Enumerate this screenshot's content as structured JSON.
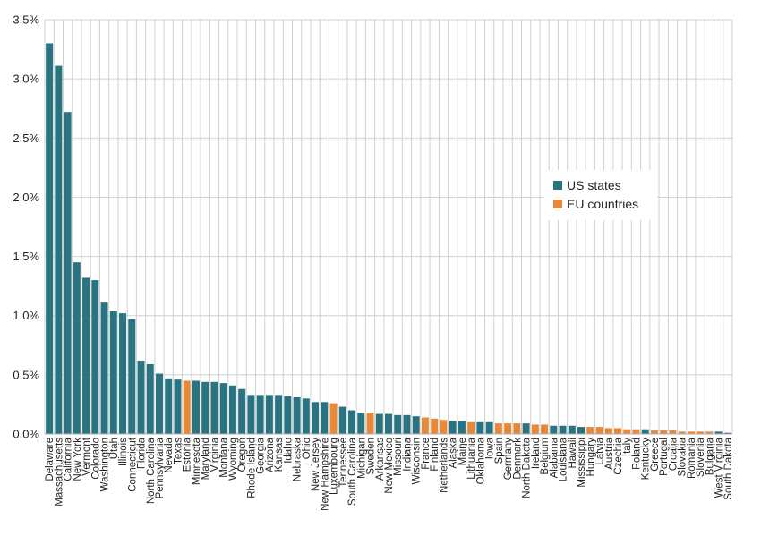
{
  "chart_data": {
    "type": "bar",
    "title": "",
    "xlabel": "",
    "ylabel": "",
    "ylim": [
      0,
      3.5
    ],
    "y_ticks": [
      "0.0%",
      "0.5%",
      "1.0%",
      "1.5%",
      "2.0%",
      "2.5%",
      "3.0%",
      "3.5%"
    ],
    "y_tick_values": [
      0,
      0.5,
      1.0,
      1.5,
      2.0,
      2.5,
      3.0,
      3.5
    ],
    "y_unit": "%",
    "grid": true,
    "legend_position": "right",
    "colors": {
      "US states": "#2a7380",
      "EU countries": "#e8893a"
    },
    "legend": [
      {
        "name": "US states",
        "color": "#2a7380"
      },
      {
        "name": "EU countries",
        "color": "#e8893a"
      }
    ],
    "categories": [
      "Delaware",
      "Massachusetts",
      "California",
      "New York",
      "Vermont",
      "Colorado",
      "Washington",
      "Utah",
      "Illinois",
      "Connecticut",
      "Florida",
      "North Carolina",
      "Pennsylvania",
      "Nevada",
      "Texas",
      "Estonia",
      "Minnesota",
      "Maryland",
      "Virginia",
      "Montana",
      "Wyoming",
      "Oregon",
      "Rhode Island",
      "Georgia",
      "Arizona",
      "Kansas",
      "Idaho",
      "Nebraska",
      "Ohio",
      "New Jersey",
      "New Hampshire",
      "Luxembourg",
      "Tennessee",
      "South Carolina",
      "Michigan",
      "Sweden",
      "Arkansas",
      "New Mexico",
      "Missouri",
      "Indiana",
      "Wisconsin",
      "France",
      "Finland",
      "Netherlands",
      "Alaska",
      "Maine",
      "Lithuania",
      "Oklahoma",
      "Iowa",
      "Spain",
      "Germany",
      "Denmark",
      "North Dakota",
      "Ireland",
      "Belgium",
      "Alabama",
      "Louisiana",
      "Hawaii",
      "Mississippi",
      "Hungary",
      "Latvia",
      "Austria",
      "Czechia",
      "Italy",
      "Poland",
      "Kentucky",
      "Greece",
      "Portugal",
      "Croatia",
      "Slovakia",
      "Romania",
      "Slovenia",
      "Bulgaria",
      "West Virginia",
      "South Dakota"
    ],
    "groups": [
      "US states",
      "US states",
      "US states",
      "US states",
      "US states",
      "US states",
      "US states",
      "US states",
      "US states",
      "US states",
      "US states",
      "US states",
      "US states",
      "US states",
      "US states",
      "EU countries",
      "US states",
      "US states",
      "US states",
      "US states",
      "US states",
      "US states",
      "US states",
      "US states",
      "US states",
      "US states",
      "US states",
      "US states",
      "US states",
      "US states",
      "US states",
      "EU countries",
      "US states",
      "US states",
      "US states",
      "EU countries",
      "US states",
      "US states",
      "US states",
      "US states",
      "US states",
      "EU countries",
      "EU countries",
      "EU countries",
      "US states",
      "US states",
      "EU countries",
      "US states",
      "US states",
      "EU countries",
      "EU countries",
      "EU countries",
      "US states",
      "EU countries",
      "EU countries",
      "US states",
      "US states",
      "US states",
      "US states",
      "EU countries",
      "EU countries",
      "EU countries",
      "EU countries",
      "EU countries",
      "EU countries",
      "US states",
      "EU countries",
      "EU countries",
      "EU countries",
      "EU countries",
      "EU countries",
      "EU countries",
      "EU countries",
      "US states",
      "US states"
    ],
    "values": [
      3.3,
      3.11,
      2.72,
      1.45,
      1.32,
      1.3,
      1.11,
      1.04,
      1.02,
      0.97,
      0.62,
      0.59,
      0.51,
      0.47,
      0.46,
      0.45,
      0.45,
      0.44,
      0.44,
      0.43,
      0.41,
      0.38,
      0.33,
      0.33,
      0.33,
      0.33,
      0.32,
      0.31,
      0.3,
      0.27,
      0.27,
      0.26,
      0.23,
      0.2,
      0.18,
      0.18,
      0.17,
      0.17,
      0.16,
      0.16,
      0.15,
      0.14,
      0.13,
      0.12,
      0.11,
      0.11,
      0.1,
      0.1,
      0.1,
      0.09,
      0.09,
      0.09,
      0.09,
      0.08,
      0.08,
      0.07,
      0.07,
      0.07,
      0.06,
      0.06,
      0.06,
      0.05,
      0.05,
      0.04,
      0.04,
      0.04,
      0.03,
      0.03,
      0.03,
      0.02,
      0.02,
      0.02,
      0.02,
      0.02,
      0.01
    ]
  }
}
